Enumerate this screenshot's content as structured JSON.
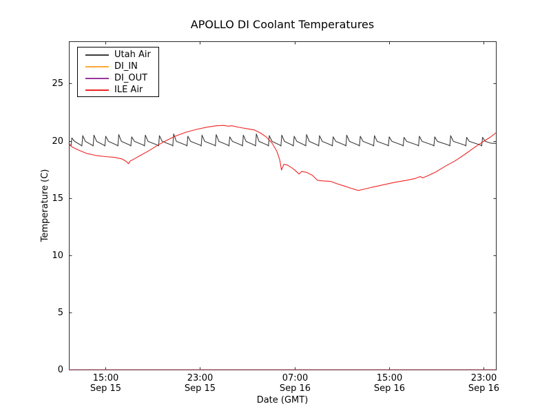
{
  "chart_data": {
    "type": "line",
    "title": "APOLLO DI Coolant Temperatures",
    "xlabel": "Date (GMT)",
    "ylabel": "Temperature (C)",
    "grid": false,
    "legend_position": "upper left",
    "background": "#ffffff",
    "frame_color": "#2a2a2a",
    "x_unit": "hours since Sep 15 00:00 GMT",
    "xlim": [
      11.9,
      48.05
    ],
    "ylim": [
      0,
      28.7
    ],
    "yticks": [
      0,
      5,
      10,
      15,
      20,
      25
    ],
    "xticks": [
      {
        "value": 15,
        "time": "15:00",
        "date": "Sep 15"
      },
      {
        "value": 23,
        "time": "23:00",
        "date": "Sep 15"
      },
      {
        "value": 31,
        "time": "07:00",
        "date": "Sep 16"
      },
      {
        "value": 39,
        "time": "15:00",
        "date": "Sep 16"
      },
      {
        "value": 47,
        "time": "23:00",
        "date": "Sep 16"
      }
    ],
    "series": [
      {
        "name": "Utah Air",
        "color": "#3a3a3a",
        "points": [
          [
            11.9,
            19.85
          ],
          [
            11.96,
            19.7
          ],
          [
            12.02,
            19.58
          ],
          [
            12.08,
            19.55
          ],
          [
            12.15,
            20.25
          ],
          [
            12.38,
            19.95
          ],
          [
            12.92,
            19.62
          ],
          [
            13.0,
            19.55
          ],
          [
            13.07,
            20.45
          ],
          [
            13.3,
            19.95
          ],
          [
            13.87,
            19.62
          ],
          [
            13.95,
            19.55
          ],
          [
            14.02,
            20.5
          ],
          [
            14.25,
            19.95
          ],
          [
            14.87,
            19.62
          ],
          [
            14.95,
            19.55
          ],
          [
            15.02,
            20.4
          ],
          [
            15.25,
            19.95
          ],
          [
            15.97,
            19.62
          ],
          [
            16.05,
            19.55
          ],
          [
            16.12,
            20.55
          ],
          [
            16.35,
            19.95
          ],
          [
            17.07,
            19.62
          ],
          [
            17.15,
            19.55
          ],
          [
            17.22,
            20.35
          ],
          [
            17.45,
            19.95
          ],
          [
            18.22,
            19.62
          ],
          [
            18.3,
            19.55
          ],
          [
            18.37,
            20.5
          ],
          [
            18.6,
            19.95
          ],
          [
            19.42,
            19.62
          ],
          [
            19.5,
            19.55
          ],
          [
            19.57,
            20.45
          ],
          [
            19.8,
            19.95
          ],
          [
            20.62,
            19.62
          ],
          [
            20.7,
            19.55
          ],
          [
            20.77,
            20.6
          ],
          [
            21.0,
            19.95
          ],
          [
            21.82,
            19.62
          ],
          [
            21.9,
            19.55
          ],
          [
            21.97,
            20.4
          ],
          [
            22.2,
            19.95
          ],
          [
            23.02,
            19.62
          ],
          [
            23.1,
            19.55
          ],
          [
            23.17,
            20.5
          ],
          [
            23.4,
            19.95
          ],
          [
            24.22,
            19.62
          ],
          [
            24.3,
            19.55
          ],
          [
            24.37,
            20.55
          ],
          [
            24.6,
            19.95
          ],
          [
            25.37,
            19.62
          ],
          [
            25.45,
            19.55
          ],
          [
            25.52,
            20.35
          ],
          [
            25.75,
            19.95
          ],
          [
            26.52,
            19.62
          ],
          [
            26.6,
            19.55
          ],
          [
            26.67,
            20.5
          ],
          [
            26.9,
            19.95
          ],
          [
            27.62,
            19.62
          ],
          [
            27.7,
            19.55
          ],
          [
            27.77,
            20.6
          ],
          [
            28.0,
            19.95
          ],
          [
            28.72,
            19.62
          ],
          [
            28.8,
            19.55
          ],
          [
            28.87,
            20.45
          ],
          [
            29.1,
            19.95
          ],
          [
            29.77,
            19.62
          ],
          [
            29.85,
            19.55
          ],
          [
            29.92,
            20.5
          ],
          [
            30.15,
            19.95
          ],
          [
            30.82,
            19.62
          ],
          [
            30.9,
            19.55
          ],
          [
            30.97,
            20.4
          ],
          [
            31.2,
            19.95
          ],
          [
            31.87,
            19.62
          ],
          [
            31.95,
            19.55
          ],
          [
            32.02,
            20.55
          ],
          [
            32.25,
            19.95
          ],
          [
            32.97,
            19.62
          ],
          [
            33.05,
            19.55
          ],
          [
            33.12,
            20.45
          ],
          [
            33.35,
            19.95
          ],
          [
            34.12,
            19.62
          ],
          [
            34.2,
            19.55
          ],
          [
            34.27,
            20.35
          ],
          [
            34.5,
            19.95
          ],
          [
            35.27,
            19.62
          ],
          [
            35.35,
            19.55
          ],
          [
            35.42,
            20.5
          ],
          [
            35.65,
            19.95
          ],
          [
            36.42,
            19.62
          ],
          [
            36.5,
            19.55
          ],
          [
            36.57,
            20.4
          ],
          [
            36.8,
            19.95
          ],
          [
            37.62,
            19.62
          ],
          [
            37.7,
            19.55
          ],
          [
            37.77,
            20.45
          ],
          [
            38.0,
            19.95
          ],
          [
            38.87,
            19.62
          ],
          [
            38.95,
            19.55
          ],
          [
            39.02,
            20.35
          ],
          [
            39.25,
            19.95
          ],
          [
            40.12,
            19.62
          ],
          [
            40.2,
            19.55
          ],
          [
            40.27,
            20.3
          ],
          [
            40.5,
            19.95
          ],
          [
            41.42,
            19.62
          ],
          [
            41.5,
            19.55
          ],
          [
            41.57,
            20.4
          ],
          [
            41.8,
            19.95
          ],
          [
            42.72,
            19.62
          ],
          [
            42.8,
            19.55
          ],
          [
            42.87,
            20.35
          ],
          [
            43.1,
            19.95
          ],
          [
            44.07,
            19.62
          ],
          [
            44.15,
            19.55
          ],
          [
            44.22,
            20.45
          ],
          [
            44.45,
            19.95
          ],
          [
            45.42,
            19.62
          ],
          [
            45.5,
            19.55
          ],
          [
            45.57,
            20.3
          ],
          [
            45.8,
            19.95
          ],
          [
            46.77,
            19.62
          ],
          [
            46.85,
            19.55
          ],
          [
            46.92,
            20.3
          ],
          [
            47.15,
            19.95
          ],
          [
            47.6,
            19.8
          ],
          [
            48.05,
            19.78
          ]
        ]
      },
      {
        "name": "DI_IN",
        "color": "#ffaa33",
        "points": [
          [
            11.9,
            0.0
          ],
          [
            48.05,
            0.0
          ]
        ]
      },
      {
        "name": "DI_OUT",
        "color": "#993399",
        "points": [
          [
            11.9,
            0.0
          ],
          [
            48.05,
            0.0
          ]
        ]
      },
      {
        "name": "ILE Air",
        "color": "#ee2222",
        "points": [
          [
            11.9,
            19.75
          ],
          [
            12.2,
            19.45
          ],
          [
            12.7,
            19.2
          ],
          [
            13.4,
            18.9
          ],
          [
            14.2,
            18.72
          ],
          [
            15.0,
            18.62
          ],
          [
            15.8,
            18.55
          ],
          [
            16.4,
            18.42
          ],
          [
            16.75,
            18.2
          ],
          [
            16.95,
            18.0
          ],
          [
            17.1,
            18.25
          ],
          [
            17.4,
            18.4
          ],
          [
            18.0,
            18.75
          ],
          [
            18.7,
            19.15
          ],
          [
            19.4,
            19.6
          ],
          [
            20.1,
            20.0
          ],
          [
            20.9,
            20.4
          ],
          [
            21.8,
            20.75
          ],
          [
            22.7,
            21.0
          ],
          [
            23.6,
            21.2
          ],
          [
            24.4,
            21.32
          ],
          [
            25.0,
            21.35
          ],
          [
            25.4,
            21.28
          ],
          [
            25.7,
            21.32
          ],
          [
            26.3,
            21.18
          ],
          [
            27.0,
            21.05
          ],
          [
            27.6,
            20.95
          ],
          [
            28.1,
            20.7
          ],
          [
            28.6,
            20.35
          ],
          [
            29.1,
            19.8
          ],
          [
            29.5,
            19.1
          ],
          [
            29.75,
            18.35
          ],
          [
            29.9,
            17.45
          ],
          [
            30.1,
            17.95
          ],
          [
            30.4,
            17.88
          ],
          [
            30.9,
            17.55
          ],
          [
            31.4,
            17.1
          ],
          [
            31.6,
            17.32
          ],
          [
            32.0,
            17.25
          ],
          [
            32.5,
            17.0
          ],
          [
            32.95,
            16.55
          ],
          [
            33.4,
            16.5
          ],
          [
            34.1,
            16.45
          ],
          [
            34.5,
            16.28
          ],
          [
            35.2,
            16.05
          ],
          [
            35.8,
            15.85
          ],
          [
            36.4,
            15.66
          ],
          [
            37.0,
            15.8
          ],
          [
            37.6,
            15.95
          ],
          [
            38.5,
            16.15
          ],
          [
            39.5,
            16.38
          ],
          [
            40.5,
            16.55
          ],
          [
            41.2,
            16.7
          ],
          [
            41.65,
            16.88
          ],
          [
            41.85,
            16.76
          ],
          [
            42.3,
            16.95
          ],
          [
            43.0,
            17.3
          ],
          [
            43.8,
            17.8
          ],
          [
            44.6,
            18.25
          ],
          [
            45.4,
            18.8
          ],
          [
            46.2,
            19.4
          ],
          [
            47.0,
            19.95
          ],
          [
            47.55,
            20.3
          ],
          [
            48.05,
            20.7
          ]
        ]
      }
    ]
  }
}
